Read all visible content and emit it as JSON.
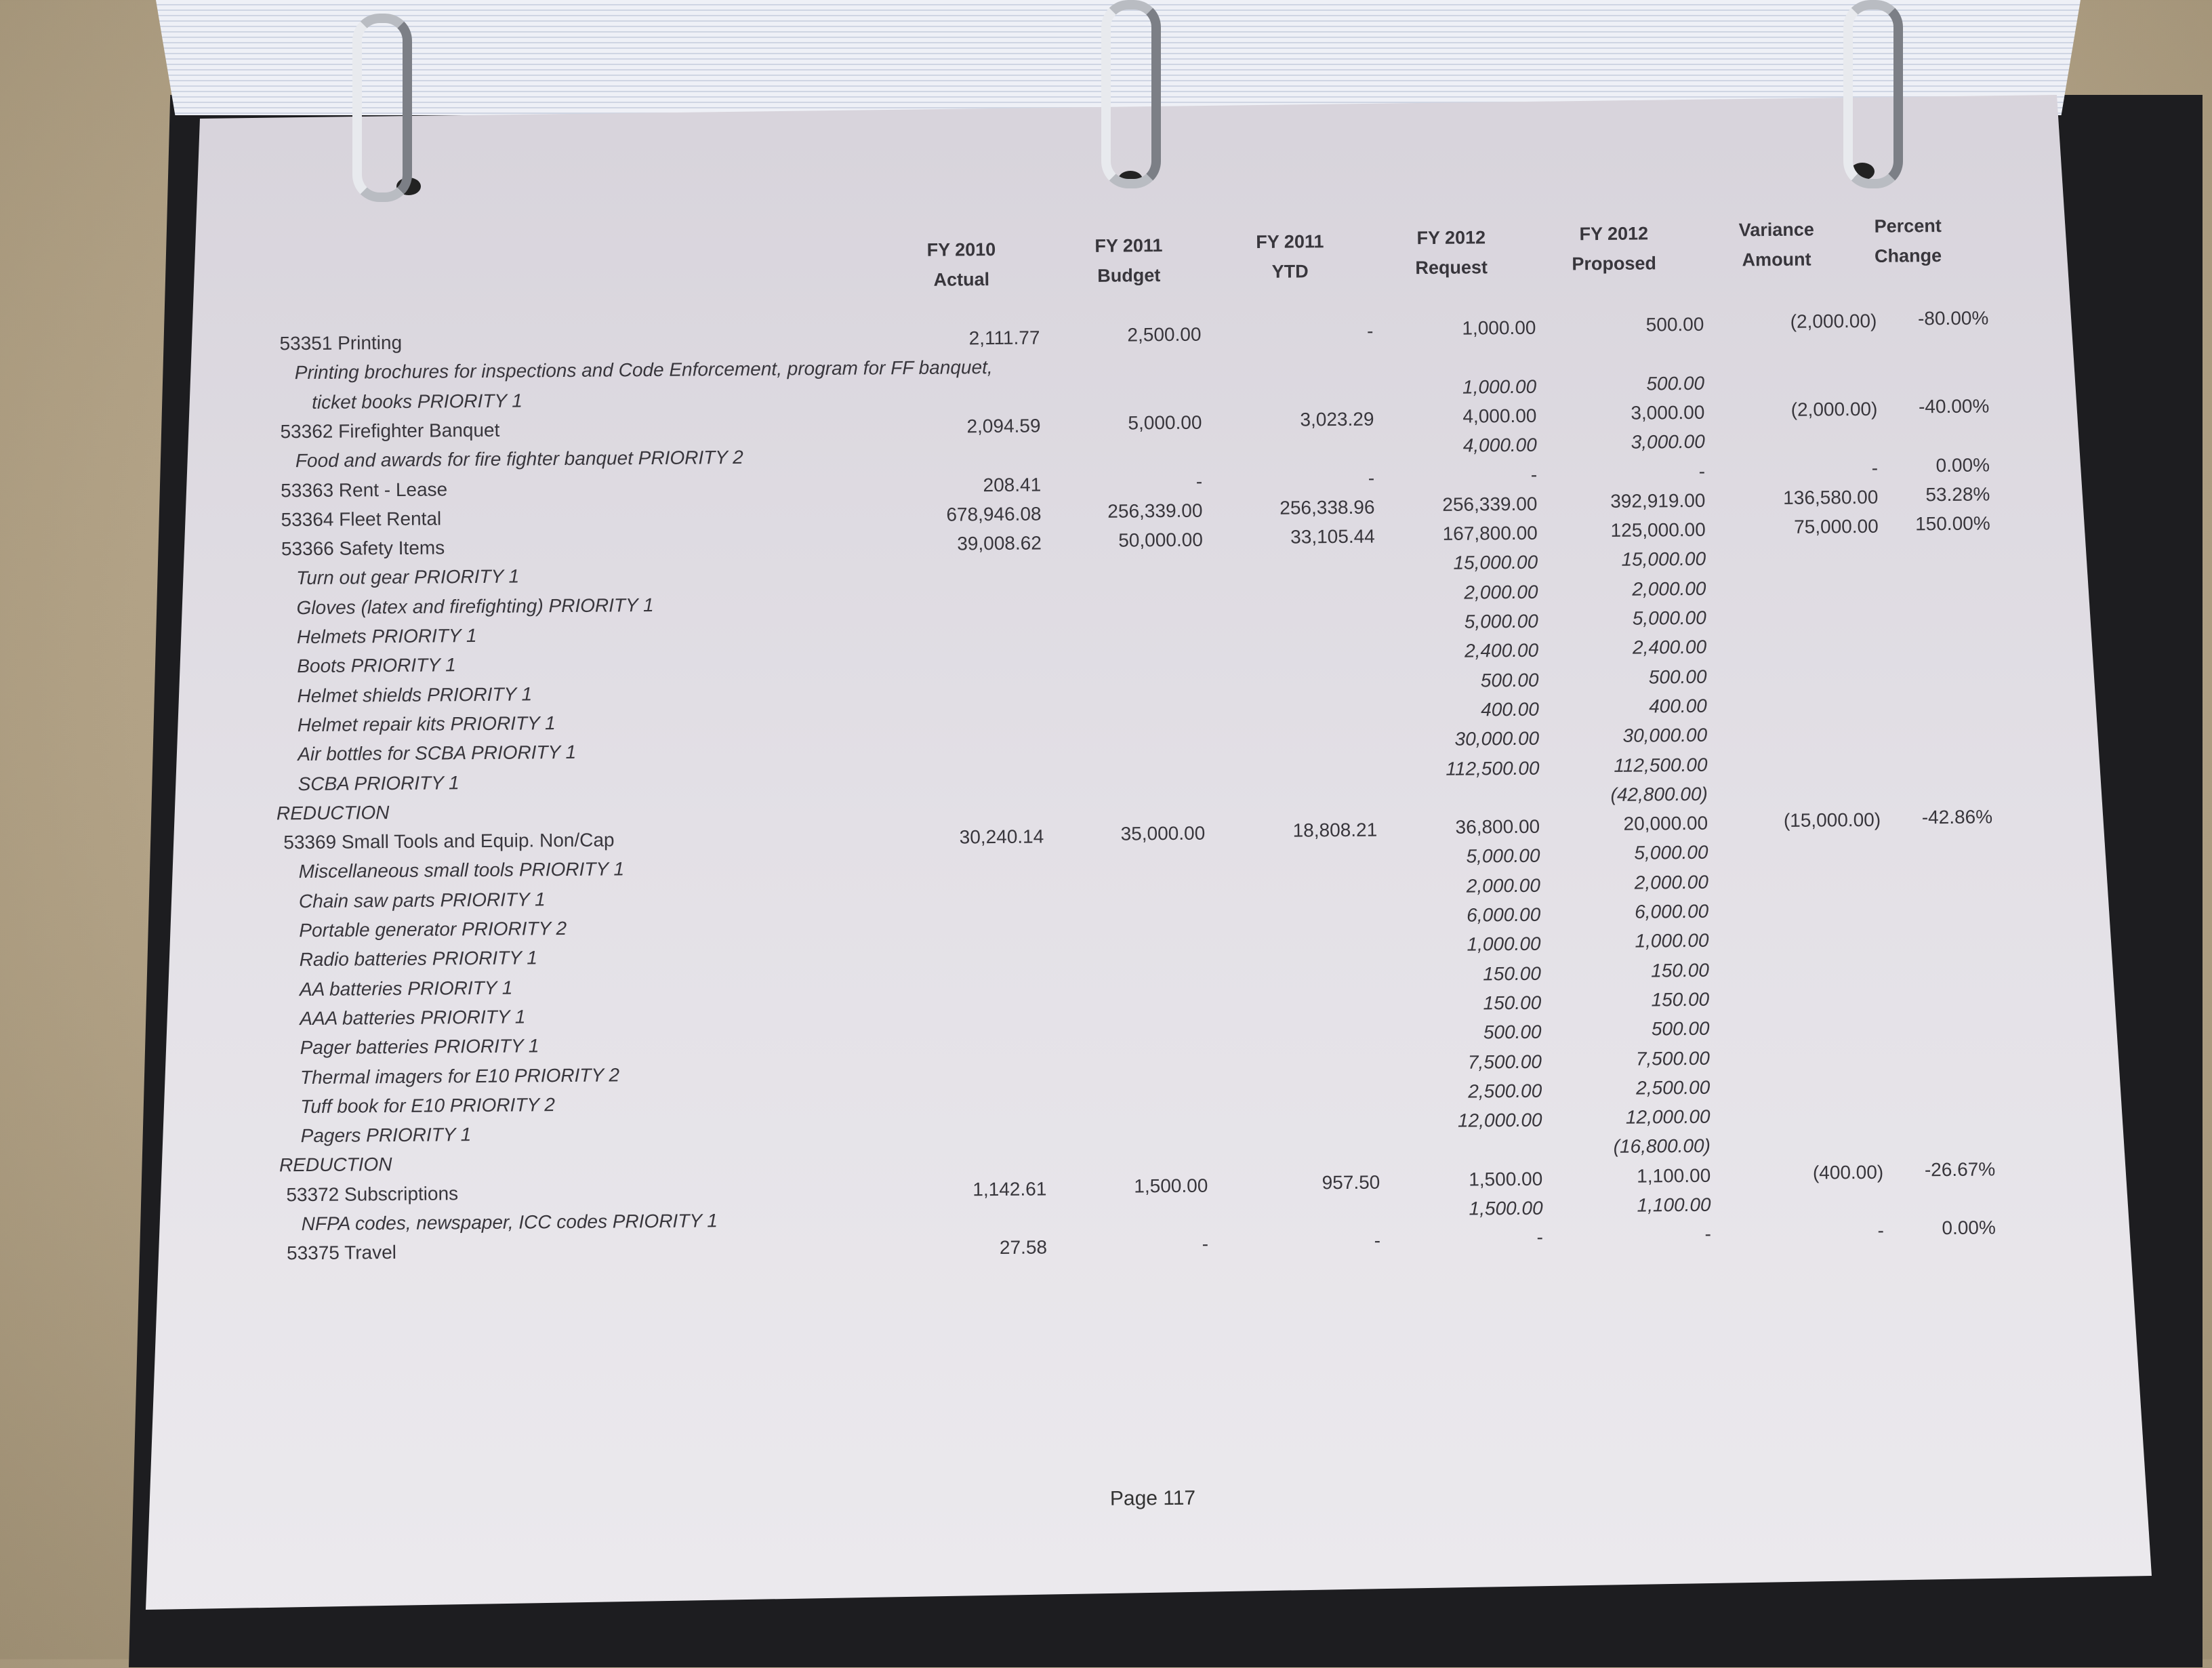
{
  "columns": [
    {
      "line1": "FY 2010",
      "line2": "Actual"
    },
    {
      "line1": "FY 2011",
      "line2": "Budget"
    },
    {
      "line1": "FY 2011",
      "line2": "YTD"
    },
    {
      "line1": "FY 2012",
      "line2": "Request"
    },
    {
      "line1": "FY 2012",
      "line2": "Proposed"
    },
    {
      "line1": "Variance",
      "line2": "Amount"
    },
    {
      "line1": "Percent",
      "line2": "Change"
    }
  ],
  "rows": [
    {
      "type": "account",
      "label": "53351  Printing",
      "values": [
        "2,111.77",
        "2,500.00",
        "-",
        "1,000.00",
        "500.00",
        "(2,000.00)",
        "-80.00%"
      ]
    },
    {
      "type": "note",
      "label": "Printing brochures for inspections and Code Enforcement, program for FF banquet,",
      "values": []
    },
    {
      "type": "note",
      "indent": true,
      "label": "ticket books   PRIORITY 1",
      "values": [
        "",
        "",
        "",
        "1,000.00",
        "500.00"
      ]
    },
    {
      "type": "account",
      "label": "53362  Firefighter Banquet",
      "values": [
        "2,094.59",
        "5,000.00",
        "3,023.29",
        "4,000.00",
        "3,000.00",
        "(2,000.00)",
        "-40.00%"
      ]
    },
    {
      "type": "note",
      "label": "Food and awards for fire fighter banquet   PRIORITY 2",
      "values": [
        "",
        "",
        "",
        "4,000.00",
        "3,000.00"
      ]
    },
    {
      "type": "account",
      "label": "53363  Rent - Lease",
      "values": [
        "208.41",
        "-",
        "-",
        "-",
        "-",
        "-",
        "0.00%"
      ]
    },
    {
      "type": "account",
      "label": "53364  Fleet Rental",
      "values": [
        "678,946.08",
        "256,339.00",
        "256,338.96",
        "256,339.00",
        "392,919.00",
        "136,580.00",
        "53.28%"
      ]
    },
    {
      "type": "account",
      "label": "53366  Safety Items",
      "values": [
        "39,008.62",
        "50,000.00",
        "33,105.44",
        "167,800.00",
        "125,000.00",
        "75,000.00",
        "150.00%"
      ]
    },
    {
      "type": "note",
      "label": "Turn out gear   PRIORITY 1",
      "values": [
        "",
        "",
        "",
        "15,000.00",
        "15,000.00"
      ]
    },
    {
      "type": "note",
      "label": "Gloves (latex and firefighting)   PRIORITY 1",
      "values": [
        "",
        "",
        "",
        "2,000.00",
        "2,000.00"
      ]
    },
    {
      "type": "note",
      "label": "Helmets   PRIORITY 1",
      "values": [
        "",
        "",
        "",
        "5,000.00",
        "5,000.00"
      ]
    },
    {
      "type": "note",
      "label": "Boots   PRIORITY 1",
      "values": [
        "",
        "",
        "",
        "2,400.00",
        "2,400.00"
      ]
    },
    {
      "type": "note",
      "label": "Helmet shields   PRIORITY 1",
      "values": [
        "",
        "",
        "",
        "500.00",
        "500.00"
      ]
    },
    {
      "type": "note",
      "label": "Helmet repair kits   PRIORITY 1",
      "values": [
        "",
        "",
        "",
        "400.00",
        "400.00"
      ]
    },
    {
      "type": "note",
      "label": "Air bottles for SCBA   PRIORITY 1",
      "values": [
        "",
        "",
        "",
        "30,000.00",
        "30,000.00"
      ]
    },
    {
      "type": "note",
      "label": "SCBA   PRIORITY 1",
      "values": [
        "",
        "",
        "",
        "112,500.00",
        "112,500.00"
      ]
    },
    {
      "type": "reduction",
      "label": "REDUCTION",
      "values": [
        "",
        "",
        "",
        "",
        "(42,800.00)"
      ]
    },
    {
      "type": "account",
      "label": "53369  Small Tools and Equip. Non/Cap",
      "values": [
        "30,240.14",
        "35,000.00",
        "18,808.21",
        "36,800.00",
        "20,000.00",
        "(15,000.00)",
        "-42.86%"
      ]
    },
    {
      "type": "note",
      "label": "Miscellaneous small tools   PRIORITY 1",
      "values": [
        "",
        "",
        "",
        "5,000.00",
        "5,000.00"
      ]
    },
    {
      "type": "note",
      "label": "Chain saw parts   PRIORITY 1",
      "values": [
        "",
        "",
        "",
        "2,000.00",
        "2,000.00"
      ]
    },
    {
      "type": "note",
      "label": "Portable generator   PRIORITY 2",
      "values": [
        "",
        "",
        "",
        "6,000.00",
        "6,000.00"
      ]
    },
    {
      "type": "note",
      "label": "Radio batteries   PRIORITY 1",
      "values": [
        "",
        "",
        "",
        "1,000.00",
        "1,000.00"
      ]
    },
    {
      "type": "note",
      "label": "AA batteries   PRIORITY 1",
      "values": [
        "",
        "",
        "",
        "150.00",
        "150.00"
      ]
    },
    {
      "type": "note",
      "label": "AAA batteries   PRIORITY 1",
      "values": [
        "",
        "",
        "",
        "150.00",
        "150.00"
      ]
    },
    {
      "type": "note",
      "label": "Pager batteries   PRIORITY 1",
      "values": [
        "",
        "",
        "",
        "500.00",
        "500.00"
      ]
    },
    {
      "type": "note",
      "label": "Thermal imagers for E10   PRIORITY 2",
      "values": [
        "",
        "",
        "",
        "7,500.00",
        "7,500.00"
      ]
    },
    {
      "type": "note",
      "label": "Tuff book for E10   PRIORITY 2",
      "values": [
        "",
        "",
        "",
        "2,500.00",
        "2,500.00"
      ]
    },
    {
      "type": "note",
      "label": "Pagers   PRIORITY 1",
      "values": [
        "",
        "",
        "",
        "12,000.00",
        "12,000.00"
      ]
    },
    {
      "type": "reduction",
      "label": "REDUCTION",
      "values": [
        "",
        "",
        "",
        "",
        "(16,800.00)"
      ]
    },
    {
      "type": "account",
      "label": "53372  Subscriptions",
      "values": [
        "1,142.61",
        "1,500.00",
        "957.50",
        "1,500.00",
        "1,100.00",
        "(400.00)",
        "-26.67%"
      ]
    },
    {
      "type": "note",
      "label": "NFPA codes, newspaper, ICC codes   PRIORITY 1",
      "values": [
        "",
        "",
        "",
        "1,500.00",
        "1,100.00"
      ]
    },
    {
      "type": "account",
      "label": "53375  Travel",
      "values": [
        "27.58",
        "-",
        "-",
        "-",
        "-",
        "-",
        "0.00%"
      ]
    }
  ],
  "footer": {
    "page": "Page 117"
  }
}
